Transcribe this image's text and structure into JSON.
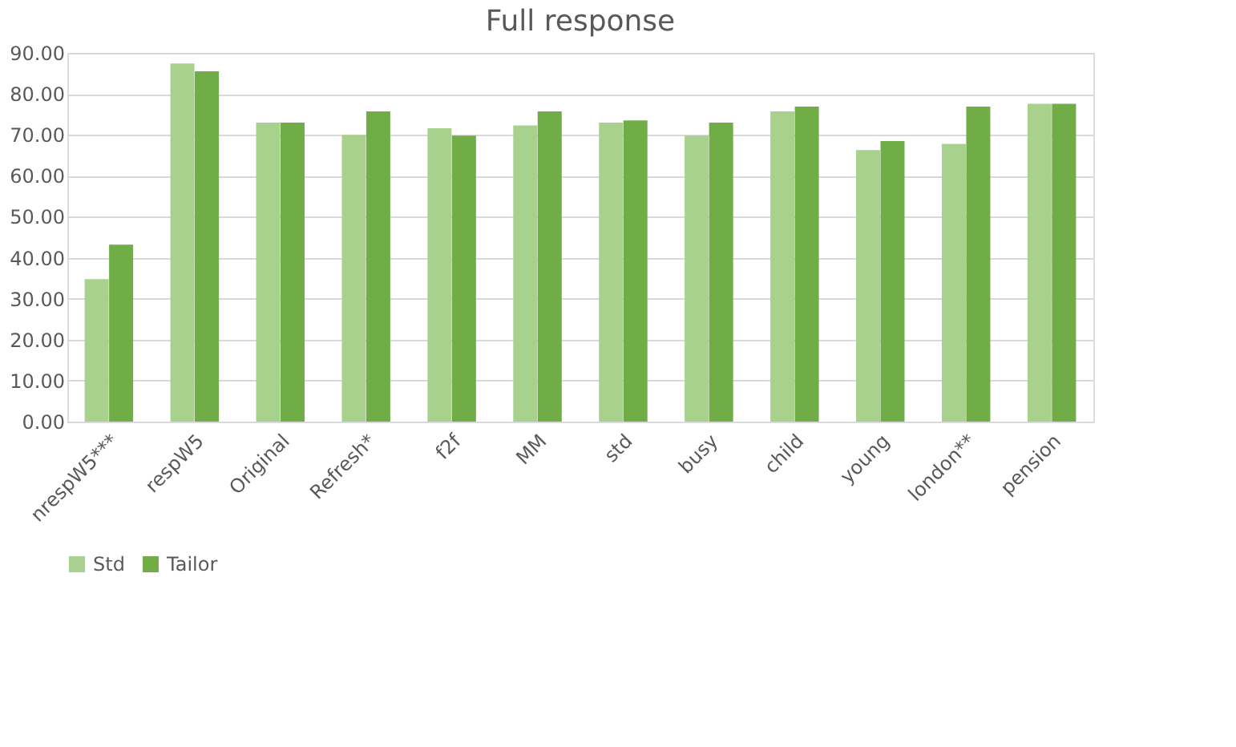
{
  "chart_data": {
    "type": "bar",
    "title": "Full response",
    "categories": [
      "nrespW5***",
      "respW5",
      "Original",
      "Refresh*",
      "f2f",
      "MM",
      "std",
      "busy",
      "child",
      "young",
      "london**",
      "pension"
    ],
    "series": [
      {
        "name": "Std",
        "color": "#a9d18e",
        "values": [
          34.8,
          87.4,
          73.0,
          70.0,
          71.6,
          72.3,
          73.0,
          69.8,
          75.7,
          66.3,
          67.8,
          77.6
        ]
      },
      {
        "name": "Tailor",
        "color": "#70ad47",
        "values": [
          43.2,
          85.5,
          73.0,
          75.7,
          69.8,
          75.7,
          73.5,
          73.0,
          76.9,
          68.5,
          76.9,
          77.6
        ]
      }
    ],
    "ylim": [
      0,
      90
    ],
    "yticks": [
      {
        "value": 0,
        "label": "0.00"
      },
      {
        "value": 10,
        "label": "10.00"
      },
      {
        "value": 20,
        "label": "20.00"
      },
      {
        "value": 30,
        "label": "30.00"
      },
      {
        "value": 40,
        "label": "40.00"
      },
      {
        "value": 50,
        "label": "50.00"
      },
      {
        "value": 60,
        "label": "60.00"
      },
      {
        "value": 70,
        "label": "70.00"
      },
      {
        "value": 80,
        "label": "80.00"
      },
      {
        "value": 90,
        "label": "90.00"
      }
    ],
    "grid": "y",
    "legend": "bottom"
  }
}
